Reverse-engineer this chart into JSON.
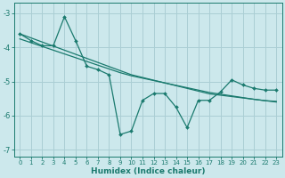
{
  "xlabel": "Humidex (Indice chaleur)",
  "background_color": "#cce8ec",
  "grid_color": "#aaced4",
  "line_color": "#1a7a6e",
  "x_data": [
    0,
    1,
    2,
    3,
    4,
    5,
    6,
    7,
    8,
    9,
    10,
    11,
    12,
    13,
    14,
    15,
    16,
    17,
    18,
    19,
    20,
    21,
    22,
    23
  ],
  "y_zigzag": [
    -3.6,
    -3.8,
    -3.95,
    -3.95,
    -3.1,
    -3.8,
    -4.55,
    -4.65,
    -4.8,
    -6.55,
    -6.45,
    -5.55,
    -5.35,
    -5.35,
    -5.75,
    -6.35,
    -5.55,
    -5.55,
    -5.3,
    -4.95,
    -5.1,
    -5.2,
    -5.25,
    -5.25
  ],
  "y_linear1": [
    -3.6,
    -3.72,
    -3.84,
    -3.96,
    -4.08,
    -4.2,
    -4.32,
    -4.44,
    -4.56,
    -4.68,
    -4.8,
    -4.88,
    -4.96,
    -5.04,
    -5.12,
    -5.2,
    -5.28,
    -5.36,
    -5.4,
    -5.44,
    -5.48,
    -5.52,
    -5.56,
    -5.58
  ],
  "y_linear2": [
    -3.75,
    -3.86,
    -3.97,
    -4.08,
    -4.19,
    -4.3,
    -4.41,
    -4.52,
    -4.63,
    -4.74,
    -4.83,
    -4.9,
    -4.97,
    -5.04,
    -5.11,
    -5.18,
    -5.25,
    -5.32,
    -5.37,
    -5.42,
    -5.47,
    -5.52,
    -5.56,
    -5.6
  ],
  "ylim": [
    -7.2,
    -2.7
  ],
  "xlim": [
    -0.5,
    23.5
  ],
  "yticks": [
    -7,
    -6,
    -5,
    -4,
    -3
  ],
  "xticks": [
    0,
    1,
    2,
    3,
    4,
    5,
    6,
    7,
    8,
    9,
    10,
    11,
    12,
    13,
    14,
    15,
    16,
    17,
    18,
    19,
    20,
    21,
    22,
    23
  ]
}
